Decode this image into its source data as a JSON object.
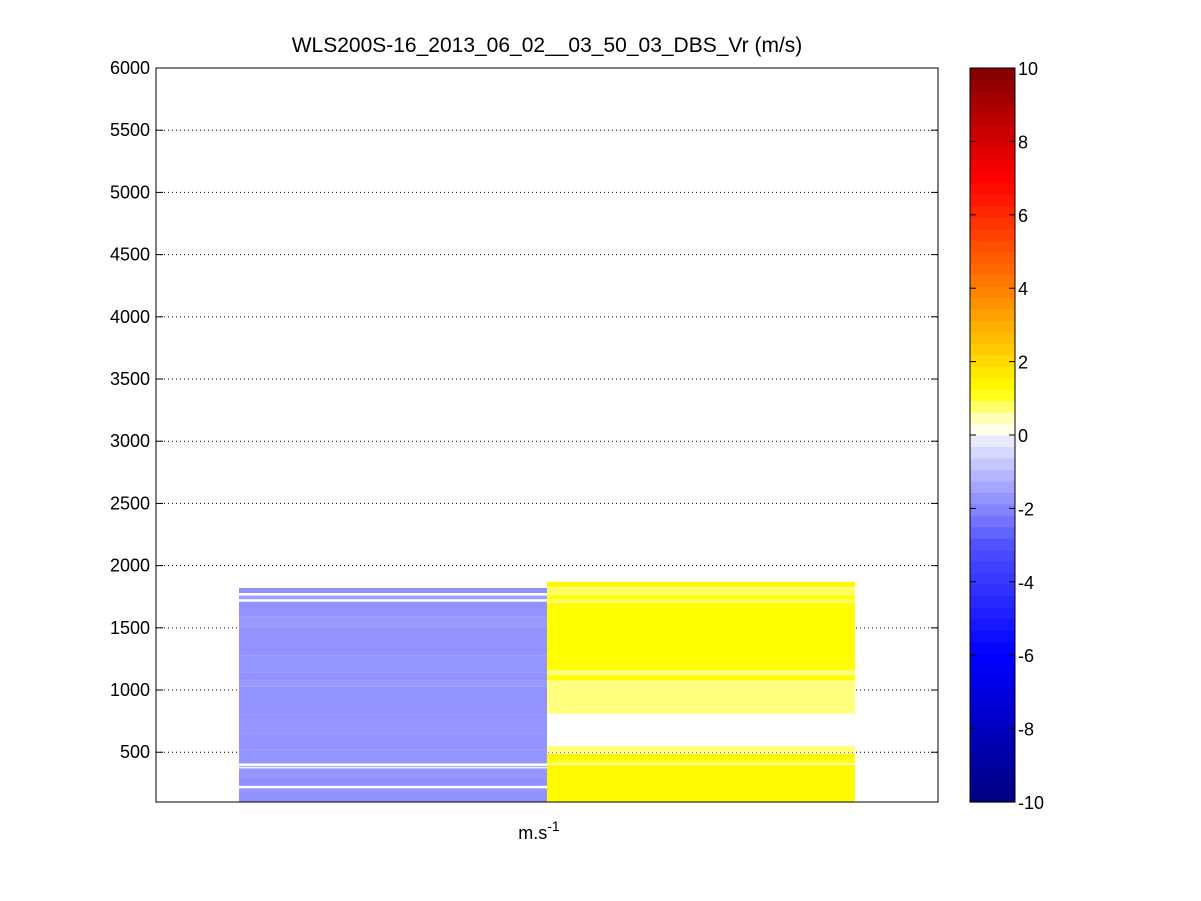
{
  "chart_data": {
    "type": "heatmap",
    "title": "WLS200S-16_2013_06_02__03_50_03_DBS_Vr (m/s)",
    "xlabel": "m.s",
    "xlabel_superscript": "-1",
    "ylabel": "",
    "ylim": [
      100,
      6000
    ],
    "yticks": [
      500,
      1000,
      1500,
      2000,
      2500,
      3000,
      3500,
      4000,
      4500,
      5000,
      5500,
      6000
    ],
    "grid": "y-dotted",
    "colorbar": {
      "range": [
        -10,
        10
      ],
      "ticks": [
        -10,
        -8,
        -6,
        -4,
        -2,
        0,
        2,
        4,
        6,
        8,
        10
      ]
    },
    "columns": [
      {
        "bands": [
          {
            "from": 100,
            "to": 180,
            "value": -1.8
          },
          {
            "from": 180,
            "to": 210,
            "value": -1.7
          },
          {
            "from": 230,
            "to": 300,
            "value": -1.8
          },
          {
            "from": 300,
            "to": 370,
            "value": -1.7
          },
          {
            "from": 380,
            "to": 390,
            "value": -1.3
          },
          {
            "from": 410,
            "to": 520,
            "value": -1.7
          },
          {
            "from": 520,
            "to": 650,
            "value": -1.75
          },
          {
            "from": 650,
            "to": 800,
            "value": -1.7
          },
          {
            "from": 800,
            "to": 1030,
            "value": -1.75
          },
          {
            "from": 1030,
            "to": 1080,
            "value": -1.65
          },
          {
            "from": 1080,
            "to": 1140,
            "value": -1.75
          },
          {
            "from": 1140,
            "to": 1280,
            "value": -1.7
          },
          {
            "from": 1280,
            "to": 1500,
            "value": -1.75
          },
          {
            "from": 1500,
            "to": 1590,
            "value": -1.65
          },
          {
            "from": 1590,
            "to": 1710,
            "value": -1.75
          },
          {
            "from": 1730,
            "to": 1760,
            "value": -1.5
          },
          {
            "from": 1780,
            "to": 1820,
            "value": -1.8
          }
        ]
      },
      {
        "bands": [
          {
            "from": 100,
            "to": 400,
            "value": 1.3
          },
          {
            "from": 410,
            "to": 440,
            "value": 1.1
          },
          {
            "from": 440,
            "to": 490,
            "value": 1.3
          },
          {
            "from": 500,
            "to": 550,
            "value": 0.7
          },
          {
            "from": 810,
            "to": 1080,
            "value": 0.7
          },
          {
            "from": 1080,
            "to": 1120,
            "value": 1.2
          },
          {
            "from": 1120,
            "to": 1160,
            "value": 0.7
          },
          {
            "from": 1160,
            "to": 1700,
            "value": 1.25
          },
          {
            "from": 1700,
            "to": 1730,
            "value": 0.8
          },
          {
            "from": 1730,
            "to": 1760,
            "value": 1.2
          },
          {
            "from": 1760,
            "to": 1830,
            "value": 0.8
          },
          {
            "from": 1830,
            "to": 1870,
            "value": 1.4
          }
        ]
      }
    ]
  }
}
